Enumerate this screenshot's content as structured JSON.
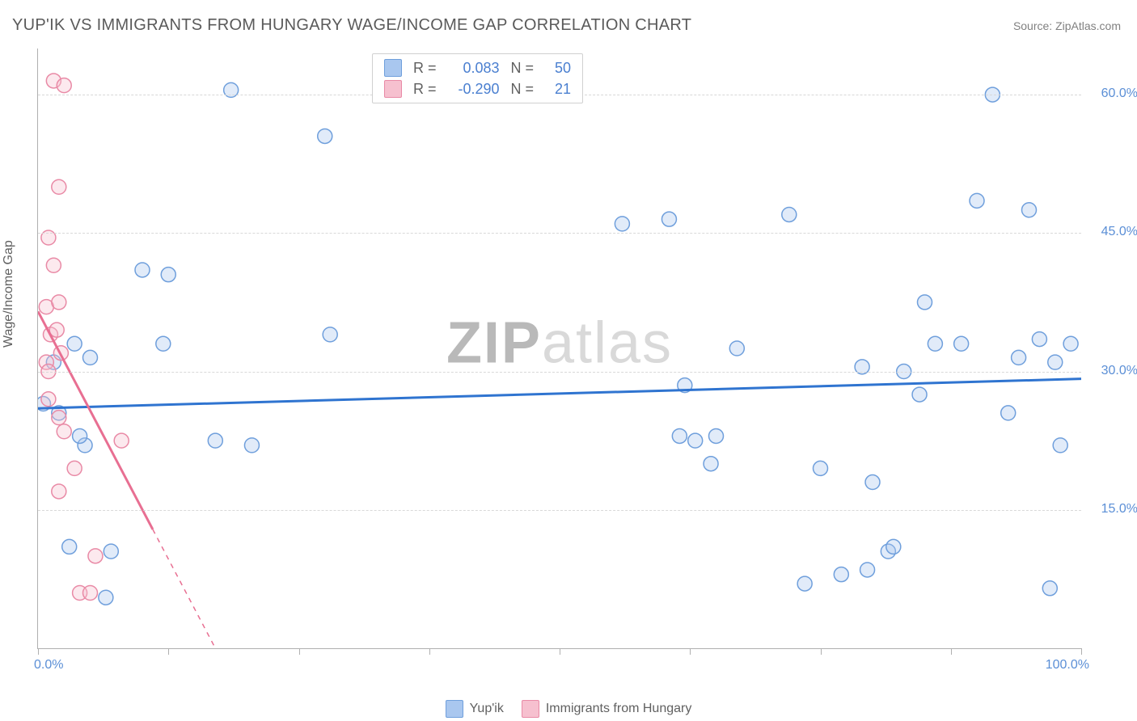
{
  "title": "YUP'IK VS IMMIGRANTS FROM HUNGARY WAGE/INCOME GAP CORRELATION CHART",
  "source": "Source: ZipAtlas.com",
  "ylabel": "Wage/Income Gap",
  "watermark_a": "ZIP",
  "watermark_b": "atlas",
  "chart": {
    "type": "scatter",
    "xlim": [
      0,
      100
    ],
    "ylim": [
      0,
      65
    ],
    "xtick_max_label": "100.0%",
    "xtick_min_label": "0.0%",
    "xtick_positions": [
      0,
      12.5,
      25,
      37.5,
      50,
      62.5,
      75,
      87.5,
      100
    ],
    "yticks": [
      {
        "v": 15,
        "label": "15.0%"
      },
      {
        "v": 30,
        "label": "30.0%"
      },
      {
        "v": 45,
        "label": "45.0%"
      },
      {
        "v": 60,
        "label": "60.0%"
      }
    ],
    "background_color": "#ffffff",
    "grid_color": "#d8d8d8",
    "axis_color": "#b0b0b0",
    "tick_label_color": "#5b8fd6",
    "marker_radius": 9,
    "series": [
      {
        "id": "yupik",
        "label": "Yup'ik",
        "color_fill": "#a9c7ef",
        "color_stroke": "#6f9fdc",
        "R": "0.083",
        "N": "50",
        "trend": {
          "x0": 0,
          "y0": 26.0,
          "x1": 100,
          "y1": 29.2,
          "color": "#2f74d0",
          "width": 3,
          "dash": "none"
        },
        "points": [
          [
            0.5,
            26.5
          ],
          [
            1.5,
            31.0
          ],
          [
            2.0,
            25.5
          ],
          [
            3.5,
            33.0
          ],
          [
            4.5,
            22.0
          ],
          [
            3.0,
            11.0
          ],
          [
            4.0,
            23.0
          ],
          [
            5.0,
            31.5
          ],
          [
            6.5,
            5.5
          ],
          [
            7.0,
            10.5
          ],
          [
            10.0,
            41.0
          ],
          [
            12.5,
            40.5
          ],
          [
            12.0,
            33.0
          ],
          [
            17.0,
            22.5
          ],
          [
            18.5,
            60.5
          ],
          [
            20.5,
            22.0
          ],
          [
            27.5,
            55.5
          ],
          [
            28.0,
            34.0
          ],
          [
            56.0,
            46.0
          ],
          [
            60.5,
            46.5
          ],
          [
            61.5,
            23.0
          ],
          [
            62.0,
            28.5
          ],
          [
            63.0,
            22.5
          ],
          [
            64.5,
            20.0
          ],
          [
            65.0,
            23.0
          ],
          [
            67.0,
            32.5
          ],
          [
            72.0,
            47.0
          ],
          [
            73.5,
            7.0
          ],
          [
            75.0,
            19.5
          ],
          [
            77.0,
            8.0
          ],
          [
            79.0,
            30.5
          ],
          [
            79.5,
            8.5
          ],
          [
            80.0,
            18.0
          ],
          [
            81.5,
            10.5
          ],
          [
            82.0,
            11.0
          ],
          [
            83.0,
            30.0
          ],
          [
            84.5,
            27.5
          ],
          [
            85.0,
            37.5
          ],
          [
            86.0,
            33.0
          ],
          [
            88.5,
            33.0
          ],
          [
            90.0,
            48.5
          ],
          [
            91.5,
            60.0
          ],
          [
            93.0,
            25.5
          ],
          [
            94.0,
            31.5
          ],
          [
            95.0,
            47.5
          ],
          [
            96.0,
            33.5
          ],
          [
            97.5,
            31.0
          ],
          [
            98.0,
            22.0
          ],
          [
            99.0,
            33.0
          ],
          [
            97.0,
            6.5
          ]
        ]
      },
      {
        "id": "hungary",
        "label": "Immigrants from Hungary",
        "color_fill": "#f6c0cf",
        "color_stroke": "#e98aa6",
        "R": "-0.290",
        "N": "21",
        "trend": {
          "x0": 0,
          "y0": 36.5,
          "x1": 17,
          "y1": 0,
          "color": "#e86f92",
          "width": 3,
          "dash": "solid_then_dash",
          "dash_from_x": 11
        },
        "points": [
          [
            1.5,
            61.5
          ],
          [
            2.5,
            61.0
          ],
          [
            2.0,
            50.0
          ],
          [
            1.0,
            44.5
          ],
          [
            1.5,
            41.5
          ],
          [
            0.8,
            37.0
          ],
          [
            2.0,
            37.5
          ],
          [
            1.2,
            34.0
          ],
          [
            1.8,
            34.5
          ],
          [
            0.8,
            31.0
          ],
          [
            2.2,
            32.0
          ],
          [
            1.0,
            30.0
          ],
          [
            1.0,
            27.0
          ],
          [
            2.0,
            25.0
          ],
          [
            2.5,
            23.5
          ],
          [
            3.5,
            19.5
          ],
          [
            2.0,
            17.0
          ],
          [
            8.0,
            22.5
          ],
          [
            5.5,
            10.0
          ],
          [
            4.0,
            6.0
          ],
          [
            5.0,
            6.0
          ]
        ]
      }
    ]
  },
  "legend_top": {
    "bg": "#ffffff",
    "border": "#d0d0d0",
    "label_color": "#606060",
    "value_color": "#4a7fd0",
    "R_label": "R =",
    "N_label": "N ="
  },
  "legend_bottom_color": "#606060"
}
